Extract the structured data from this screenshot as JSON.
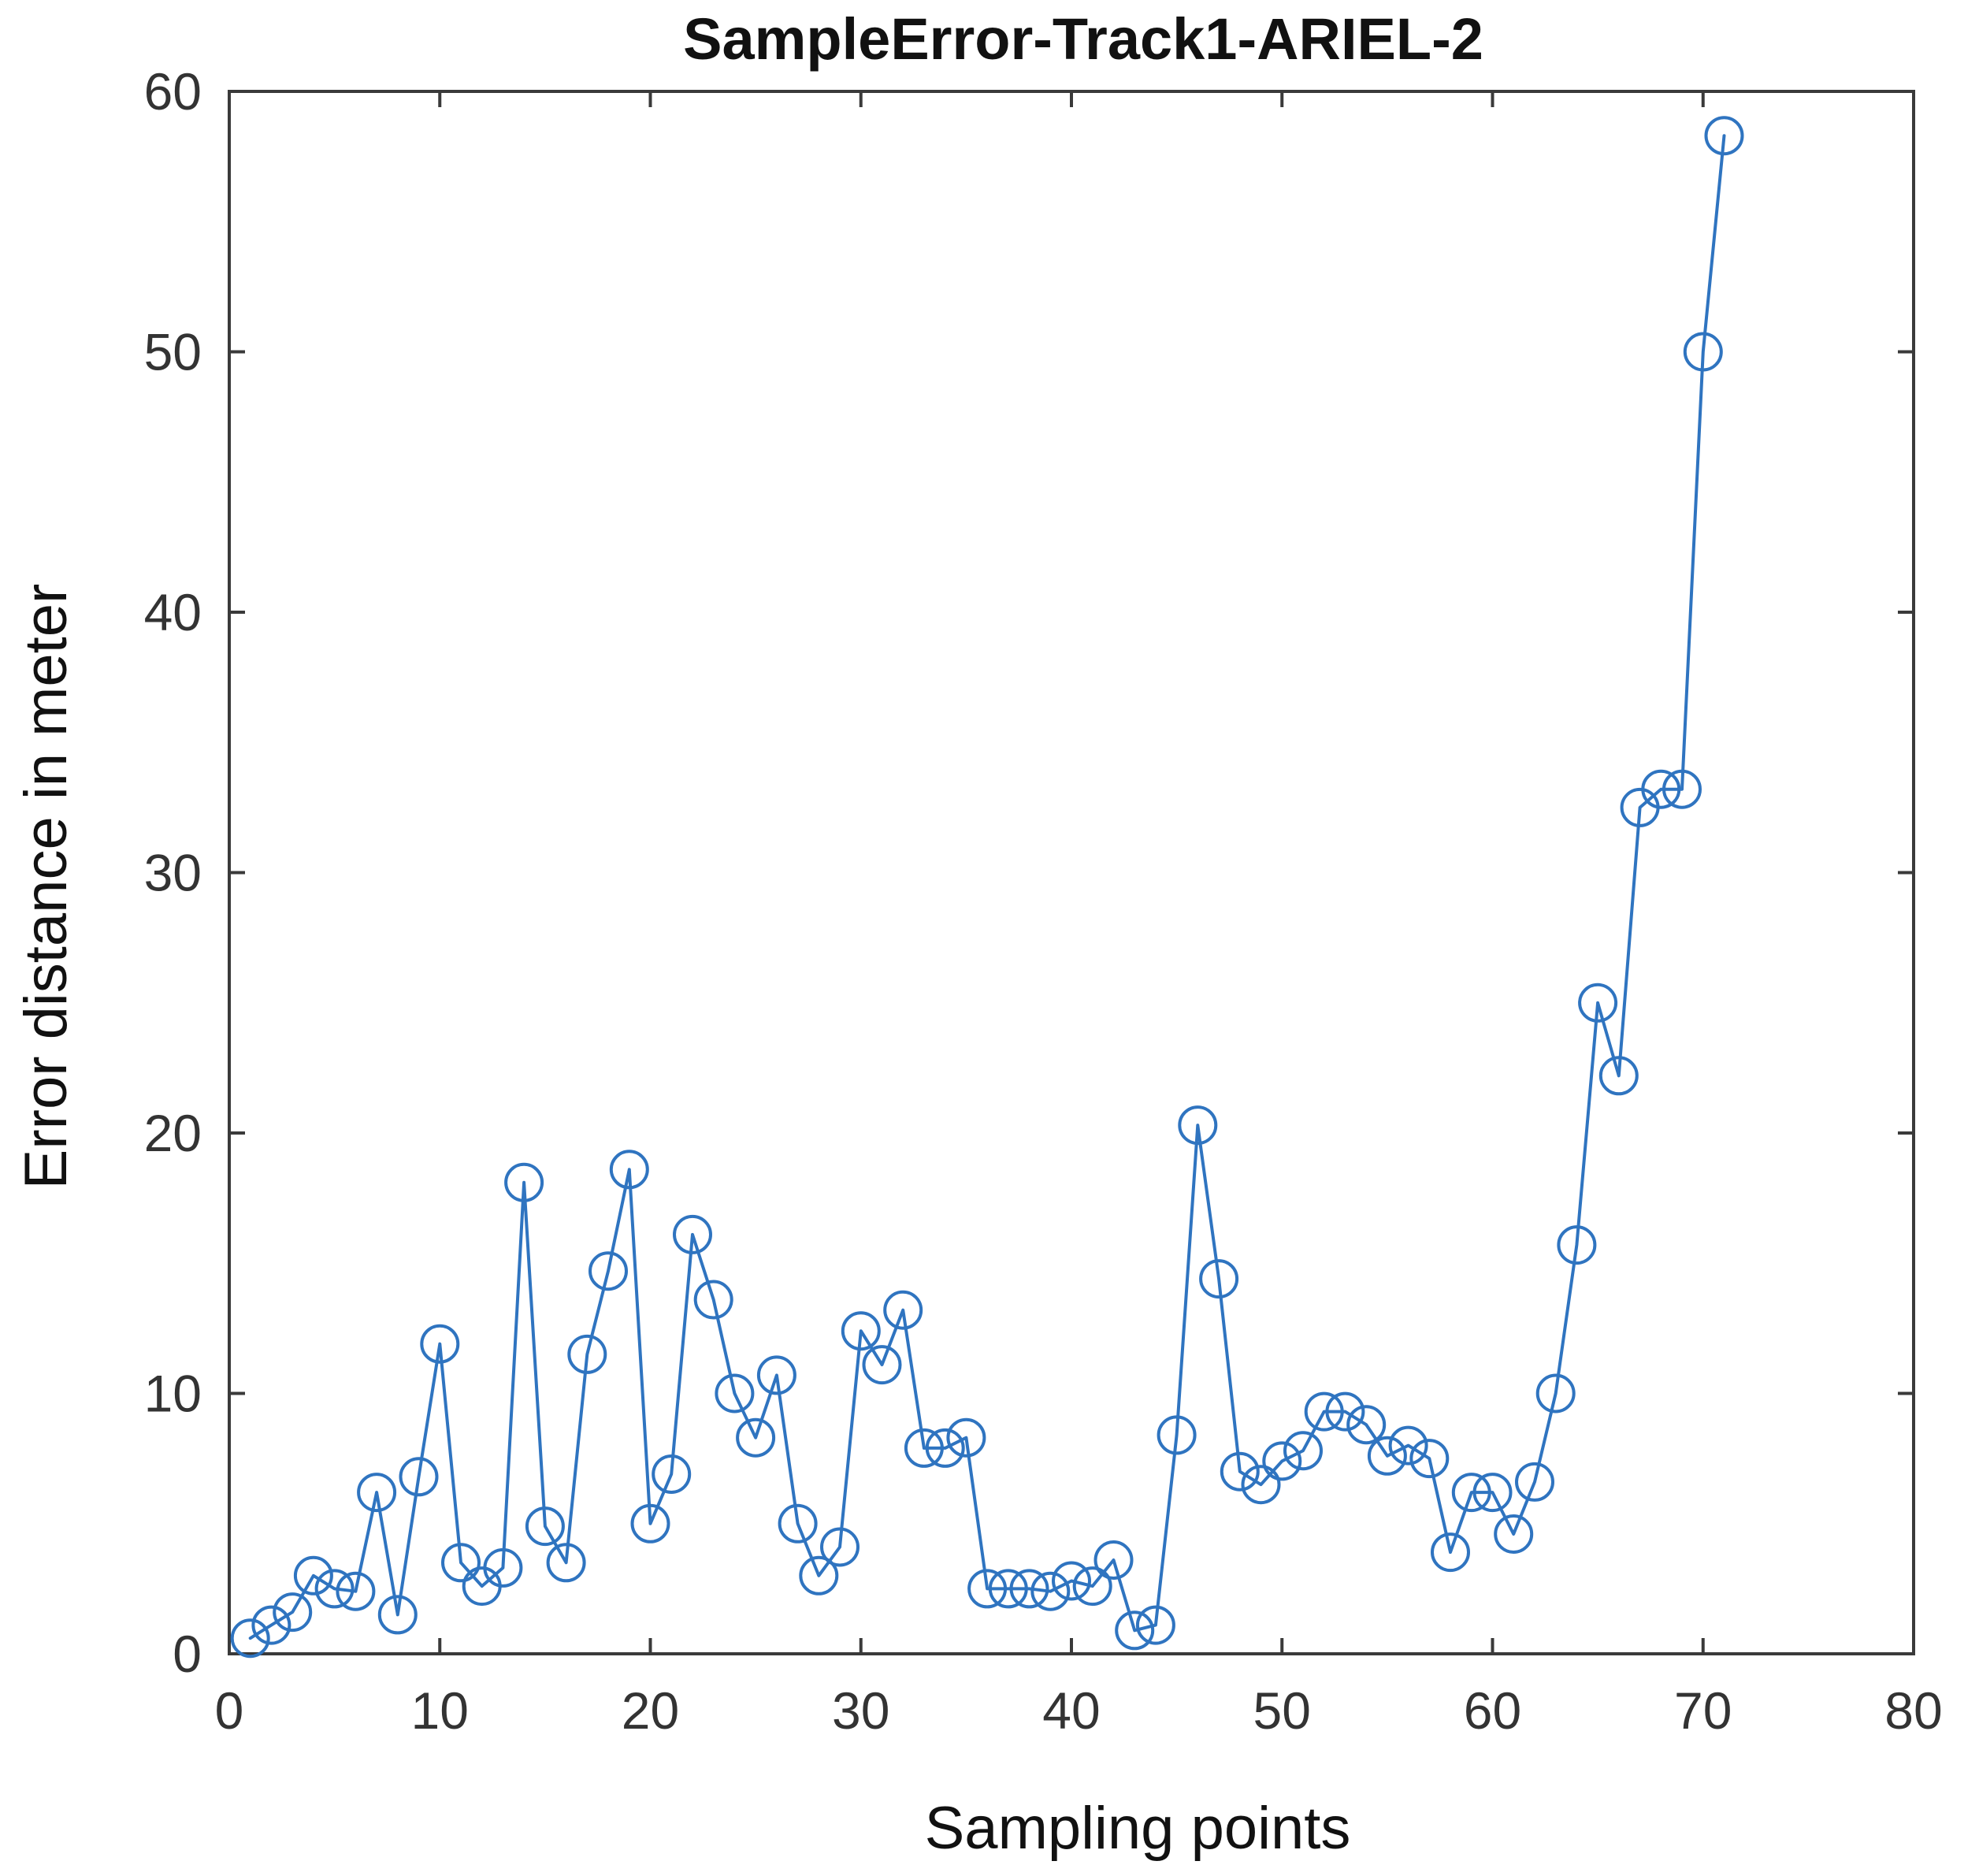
{
  "chart_data": {
    "type": "line",
    "title": "SampleError-Track1-ARIEL-2",
    "xlabel": "Sampling points",
    "ylabel": "Error distance in meter",
    "xlim": [
      0,
      80
    ],
    "ylim": [
      0,
      60
    ],
    "xticks": [
      0,
      10,
      20,
      30,
      40,
      50,
      60,
      70,
      80
    ],
    "yticks": [
      0,
      10,
      20,
      30,
      40,
      50,
      60
    ],
    "xtick_labels": [
      "0",
      "10",
      "20",
      "30",
      "40",
      "50",
      "60",
      "70",
      "80"
    ],
    "ytick_labels": [
      "0",
      "10",
      "20",
      "30",
      "40",
      "50",
      "60"
    ],
    "grid": false,
    "marker": "circle",
    "series": [
      {
        "color": "#2f74c0",
        "x": [
          1,
          2,
          3,
          4,
          5,
          6,
          7,
          8,
          9,
          10,
          11,
          12,
          13,
          14,
          15,
          16,
          17,
          18,
          19,
          20,
          21,
          22,
          23,
          24,
          25,
          26,
          27,
          28,
          29,
          30,
          31,
          32,
          33,
          34,
          35,
          36,
          37,
          38,
          39,
          40,
          41,
          42,
          43,
          44,
          45,
          46,
          47,
          48,
          49,
          50,
          51,
          52,
          53,
          54,
          55,
          56,
          57,
          58,
          59,
          60,
          61,
          62,
          63,
          64,
          65,
          66,
          67,
          68,
          69,
          70,
          71
        ],
        "values": [
          0.6,
          1.1,
          1.6,
          3.0,
          2.5,
          2.4,
          6.2,
          1.5,
          6.8,
          11.9,
          3.5,
          2.6,
          3.3,
          18.1,
          4.9,
          3.5,
          11.5,
          14.7,
          18.6,
          5.0,
          6.9,
          16.1,
          13.6,
          10.0,
          8.3,
          10.7,
          5.0,
          3.0,
          4.1,
          12.4,
          11.1,
          13.2,
          7.9,
          7.9,
          8.3,
          2.5,
          2.5,
          2.5,
          2.4,
          2.8,
          2.6,
          3.6,
          0.9,
          1.1,
          8.4,
          20.3,
          14.4,
          7.0,
          6.5,
          7.4,
          7.8,
          9.3,
          9.3,
          8.8,
          7.6,
          8.0,
          7.5,
          3.9,
          6.2,
          6.2,
          4.6,
          6.6,
          10.0,
          15.7,
          25.0,
          22.2,
          32.5,
          33.2,
          33.2,
          50.0,
          58.3
        ]
      }
    ]
  }
}
